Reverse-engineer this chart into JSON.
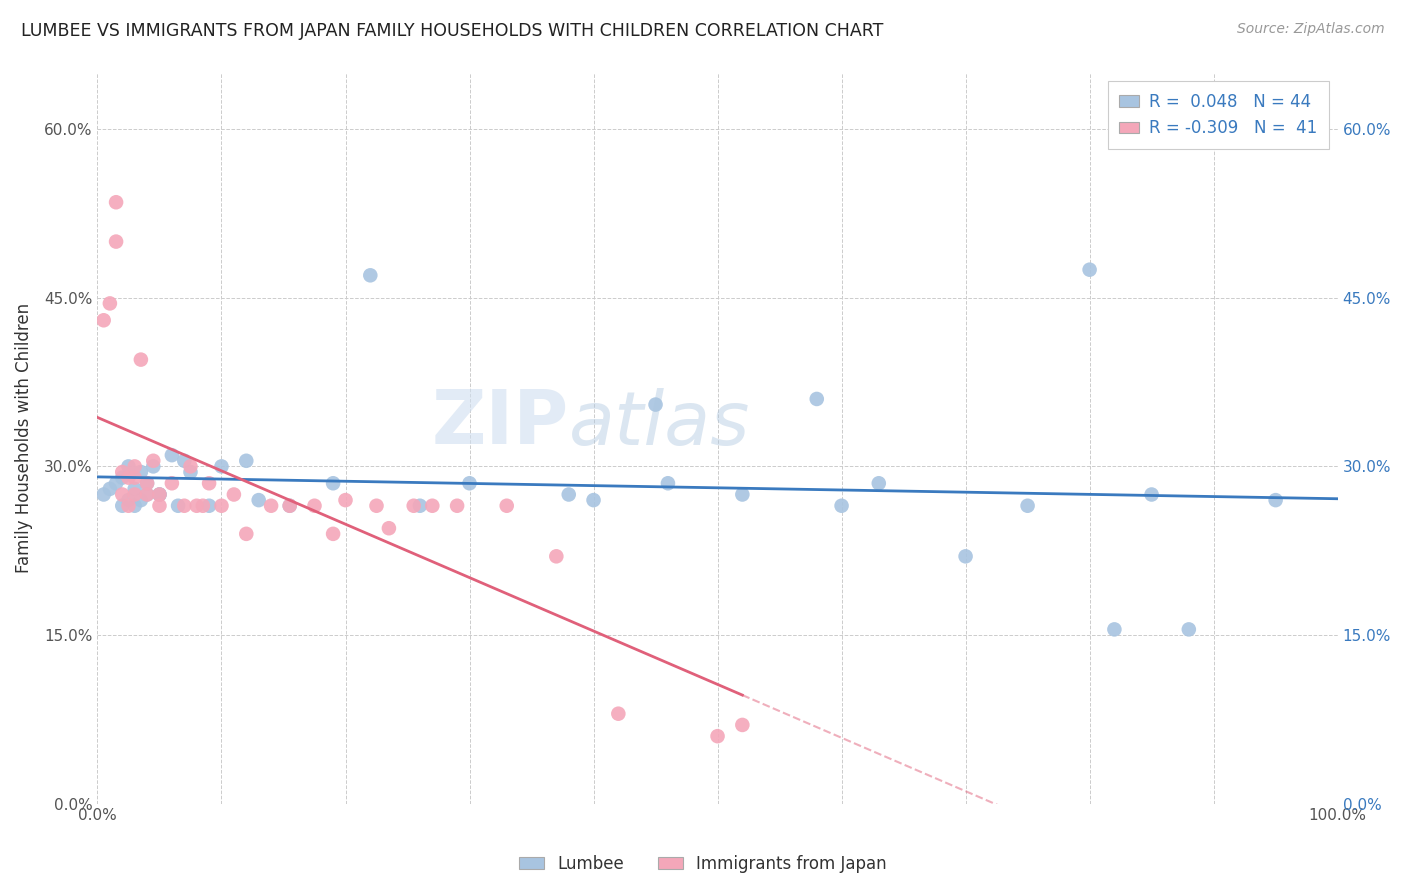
{
  "title": "LUMBEE VS IMMIGRANTS FROM JAPAN FAMILY HOUSEHOLDS WITH CHILDREN CORRELATION CHART",
  "source": "Source: ZipAtlas.com",
  "ylabel": "Family Households with Children",
  "xlim": [
    0.0,
    1.0
  ],
  "ylim": [
    0.0,
    0.65
  ],
  "xticks": [
    0.0,
    0.1,
    0.2,
    0.3,
    0.4,
    0.5,
    0.6,
    0.7,
    0.8,
    0.9,
    1.0
  ],
  "yticks": [
    0.0,
    0.15,
    0.3,
    0.45,
    0.6
  ],
  "ytick_labels": [
    "0.0%",
    "15.0%",
    "30.0%",
    "45.0%",
    "60.0%"
  ],
  "xtick_labels": [
    "0.0%",
    "",
    "",
    "",
    "",
    "",
    "",
    "",
    "",
    "",
    "100.0%"
  ],
  "watermark_zip": "ZIP",
  "watermark_atlas": "atlas",
  "lumbee_color": "#a8c4e0",
  "japan_color": "#f4a7b9",
  "line_lumbee_color": "#3a7abf",
  "line_japan_color": "#e0607a",
  "background_color": "#ffffff",
  "lumbee_x": [
    0.005,
    0.01,
    0.015,
    0.02,
    0.02,
    0.025,
    0.025,
    0.03,
    0.03,
    0.035,
    0.035,
    0.04,
    0.04,
    0.045,
    0.05,
    0.05,
    0.06,
    0.065,
    0.07,
    0.075,
    0.09,
    0.1,
    0.12,
    0.13,
    0.155,
    0.19,
    0.22,
    0.26,
    0.3,
    0.38,
    0.4,
    0.45,
    0.46,
    0.52,
    0.58,
    0.6,
    0.63,
    0.7,
    0.75,
    0.8,
    0.82,
    0.85,
    0.88,
    0.95
  ],
  "lumbee_y": [
    0.275,
    0.28,
    0.285,
    0.265,
    0.29,
    0.27,
    0.3,
    0.265,
    0.28,
    0.27,
    0.295,
    0.275,
    0.285,
    0.3,
    0.275,
    0.275,
    0.31,
    0.265,
    0.305,
    0.295,
    0.265,
    0.3,
    0.305,
    0.27,
    0.265,
    0.285,
    0.47,
    0.265,
    0.285,
    0.275,
    0.27,
    0.355,
    0.285,
    0.275,
    0.36,
    0.265,
    0.285,
    0.22,
    0.265,
    0.475,
    0.155,
    0.275,
    0.155,
    0.27
  ],
  "japan_x": [
    0.005,
    0.01,
    0.015,
    0.015,
    0.02,
    0.02,
    0.025,
    0.025,
    0.03,
    0.03,
    0.03,
    0.035,
    0.04,
    0.04,
    0.045,
    0.05,
    0.05,
    0.06,
    0.07,
    0.075,
    0.08,
    0.085,
    0.09,
    0.1,
    0.11,
    0.12,
    0.14,
    0.155,
    0.175,
    0.19,
    0.2,
    0.225,
    0.235,
    0.255,
    0.27,
    0.29,
    0.33,
    0.37,
    0.42,
    0.5,
    0.52
  ],
  "japan_y": [
    0.43,
    0.445,
    0.5,
    0.535,
    0.275,
    0.295,
    0.265,
    0.29,
    0.275,
    0.29,
    0.3,
    0.395,
    0.275,
    0.285,
    0.305,
    0.265,
    0.275,
    0.285,
    0.265,
    0.3,
    0.265,
    0.265,
    0.285,
    0.265,
    0.275,
    0.24,
    0.265,
    0.265,
    0.265,
    0.24,
    0.27,
    0.265,
    0.245,
    0.265,
    0.265,
    0.265,
    0.265,
    0.22,
    0.08,
    0.06,
    0.07
  ],
  "lumbee_R": 0.048,
  "lumbee_N": 44,
  "japan_R": -0.309,
  "japan_N": 41
}
